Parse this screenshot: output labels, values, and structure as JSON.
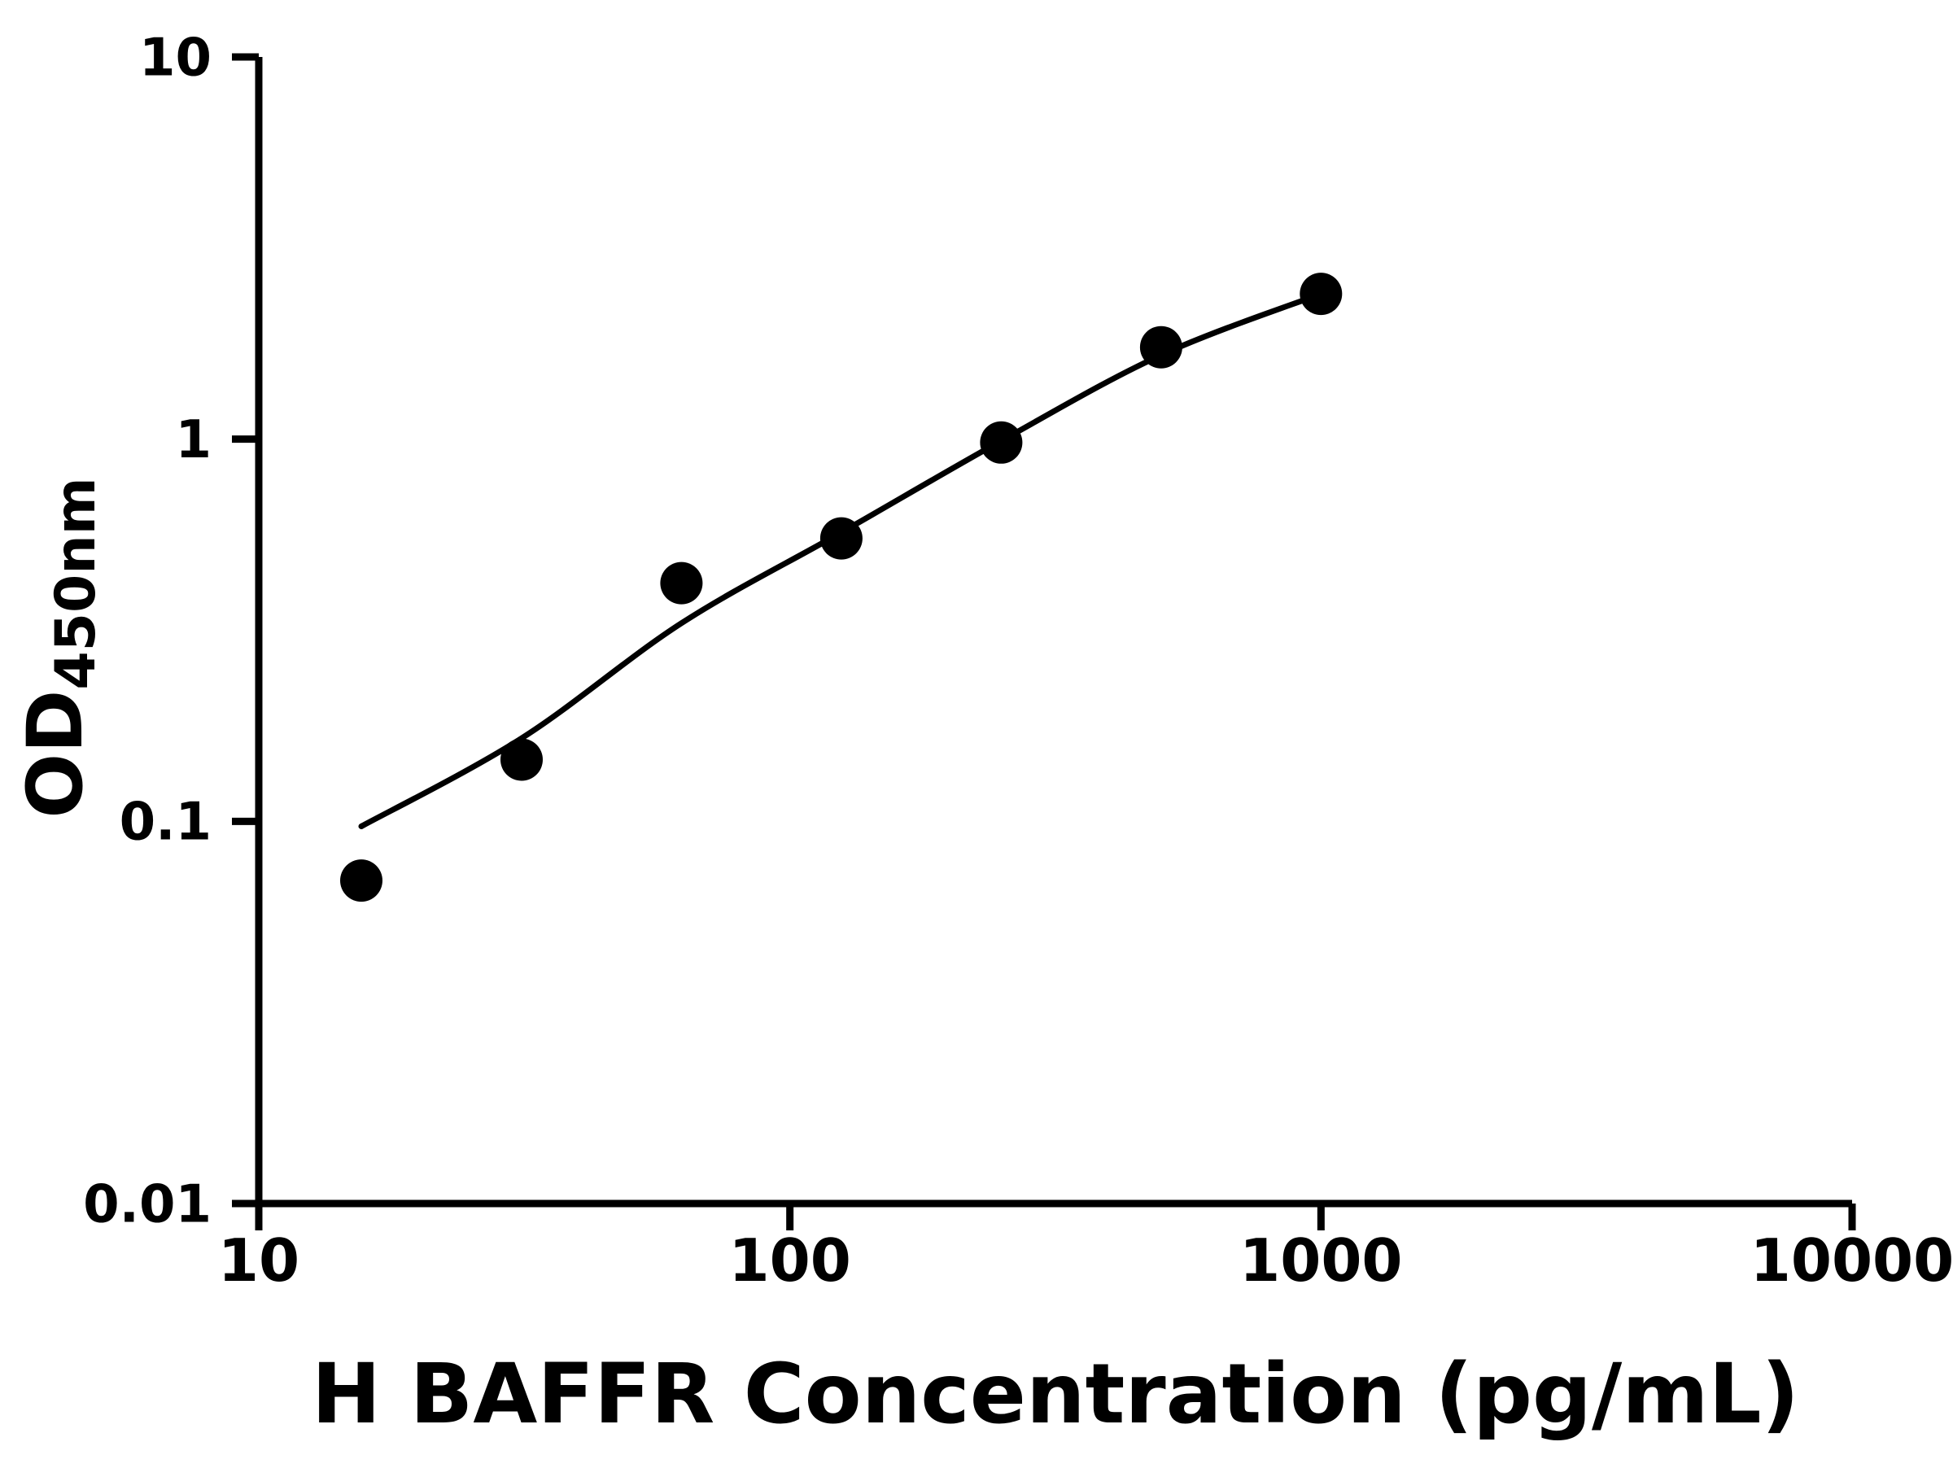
{
  "chart_data": {
    "type": "scatter",
    "title": "",
    "xlabel": "H BAFFR Concentration (pg/mL)",
    "ylabel": "OD450nm",
    "ylabel_base": "OD",
    "ylabel_sub": "450nm",
    "x_scale": "log",
    "y_scale": "log",
    "xlim": [
      10,
      10000
    ],
    "ylim": [
      0.01,
      10
    ],
    "x_tick_labels": [
      "10",
      "100",
      "1000",
      "10000"
    ],
    "y_tick_labels": [
      "0.01",
      "0.1",
      "1",
      "10"
    ],
    "grid": false,
    "legend": null,
    "points": [
      {
        "x": 15.6,
        "y": 0.07
      },
      {
        "x": 31.25,
        "y": 0.145
      },
      {
        "x": 62.5,
        "y": 0.42
      },
      {
        "x": 125,
        "y": 0.55
      },
      {
        "x": 250,
        "y": 0.98
      },
      {
        "x": 500,
        "y": 1.74
      },
      {
        "x": 1000,
        "y": 2.4
      }
    ],
    "fit_curve": [
      {
        "x": 15.6,
        "y": 0.097
      },
      {
        "x": 31.25,
        "y": 0.165
      },
      {
        "x": 62.5,
        "y": 0.33
      },
      {
        "x": 125,
        "y": 0.57
      },
      {
        "x": 250,
        "y": 0.99
      },
      {
        "x": 500,
        "y": 1.66
      },
      {
        "x": 1000,
        "y": 2.4
      }
    ],
    "marker_radius_px": 26,
    "colors": {
      "points": "#000000",
      "line": "#000000",
      "axis": "#000000",
      "background": "#ffffff"
    }
  }
}
